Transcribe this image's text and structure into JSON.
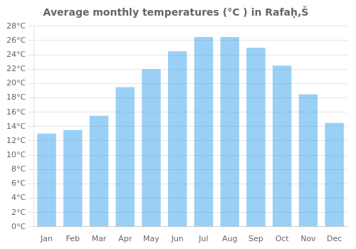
{
  "chart_data": {
    "type": "bar",
    "title": "Average monthly temperatures (°C ) in Rafaḥ,Š",
    "categories": [
      "Jan",
      "Feb",
      "Mar",
      "Apr",
      "May",
      "Jun",
      "Jul",
      "Aug",
      "Sep",
      "Oct",
      "Nov",
      "Dec"
    ],
    "values": [
      13,
      13.5,
      15.5,
      19.5,
      22,
      24.5,
      26.5,
      26.5,
      25,
      22.5,
      18.5,
      14.5
    ],
    "ylim": [
      0,
      28
    ],
    "yticks": [
      {
        "value": 0,
        "label": "0°C"
      },
      {
        "value": 2,
        "label": "2°C"
      },
      {
        "value": 4,
        "label": "4°C"
      },
      {
        "value": 6,
        "label": "6°C"
      },
      {
        "value": 8,
        "label": "8°C"
      },
      {
        "value": 10,
        "label": "10°C"
      },
      {
        "value": 12,
        "label": "12°C"
      },
      {
        "value": 14,
        "label": "14°C"
      },
      {
        "value": 16,
        "label": "16°C"
      },
      {
        "value": 18,
        "label": "18°C"
      },
      {
        "value": 20,
        "label": "20°C"
      },
      {
        "value": 22,
        "label": "22°C"
      },
      {
        "value": 24,
        "label": "24°C"
      },
      {
        "value": 26,
        "label": "26°C"
      },
      {
        "value": 28,
        "label": "28°C"
      }
    ],
    "grid": true
  }
}
